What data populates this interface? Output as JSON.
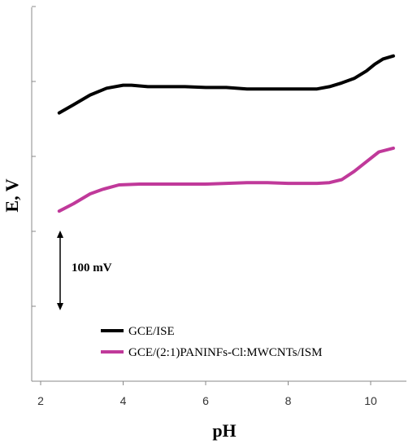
{
  "chart_data": {
    "type": "line",
    "xlabel": "pH",
    "ylabel": "E, V",
    "xlim": [
      2,
      11.1
    ],
    "x_ticks": [
      "2",
      "4",
      "6",
      "8",
      "10"
    ],
    "y_tick_count": 5,
    "y_tick_labels_shown": false,
    "scale_bar": {
      "label": "100 mV",
      "value_mV": 100
    },
    "legend_position": "bottom-left",
    "series": [
      {
        "name": "GCE/ISE",
        "color": "#000000",
        "x": [
          2.45,
          2.8,
          3.2,
          3.6,
          4.0,
          4.2,
          4.6,
          5.0,
          5.5,
          6.0,
          6.5,
          7.0,
          7.5,
          8.0,
          8.4,
          8.7,
          9.0,
          9.3,
          9.6,
          9.9,
          10.1,
          10.3,
          10.55
        ],
        "y": [
          -142,
          -131,
          -118,
          -109,
          -105,
          -105,
          -107,
          -107,
          -107,
          -108,
          -108,
          -110,
          -110,
          -110,
          -110,
          -110,
          -107,
          -102,
          -96,
          -86,
          -77,
          -70,
          -66
        ]
      },
      {
        "name": "GCE/(2:1)PANINFs-Cl:MWCNTs/ISM",
        "color": "#c0399a",
        "x": [
          2.45,
          2.8,
          3.2,
          3.5,
          3.9,
          4.4,
          5.0,
          5.5,
          6.0,
          6.5,
          7.0,
          7.5,
          8.0,
          8.5,
          8.7,
          9.0,
          9.3,
          9.6,
          9.9,
          10.2,
          10.55
        ],
        "y": [
          -273,
          -263,
          -250,
          -244,
          -238,
          -237,
          -237,
          -237,
          -237,
          -236,
          -235,
          -235,
          -236,
          -236,
          -236,
          -235,
          -231,
          -220,
          -207,
          -194,
          -189
        ]
      }
    ]
  }
}
